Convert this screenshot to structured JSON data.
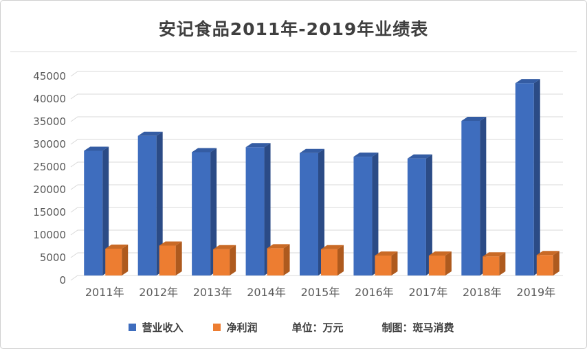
{
  "title": "安记食品2011年-2019年业绩表",
  "footer": {
    "unit_label": "单位：万元",
    "credit_label": "制图：斑马消费"
  },
  "axis_style": {
    "grid_color": "#d9d9d9",
    "tick_label_color": "#595959"
  },
  "chart_data": {
    "type": "bar",
    "title": "安记食品2011年-2019年业绩表",
    "xlabel": "",
    "ylabel": "",
    "categories": [
      "2011年",
      "2012年",
      "2013年",
      "2014年",
      "2015年",
      "2016年",
      "2017年",
      "2018年",
      "2019年"
    ],
    "series": [
      {
        "name": "营业收入",
        "color": "#3e6dbe",
        "side_color": "#2b4b86",
        "top_color": "#345ca3",
        "values": [
          27500,
          30800,
          27200,
          28300,
          27000,
          26200,
          25800,
          34100,
          42400
        ]
      },
      {
        "name": "净利润",
        "color": "#ed7d31",
        "side_color": "#ae5a1e",
        "top_color": "#c96a26",
        "values": [
          5900,
          6600,
          5800,
          6000,
          5800,
          4400,
          4400,
          4200,
          4500
        ]
      }
    ],
    "ylim": [
      0,
      45000
    ],
    "ytick_step": 5000,
    "grid": true,
    "style": "3d-column",
    "legend_position": "bottom"
  }
}
